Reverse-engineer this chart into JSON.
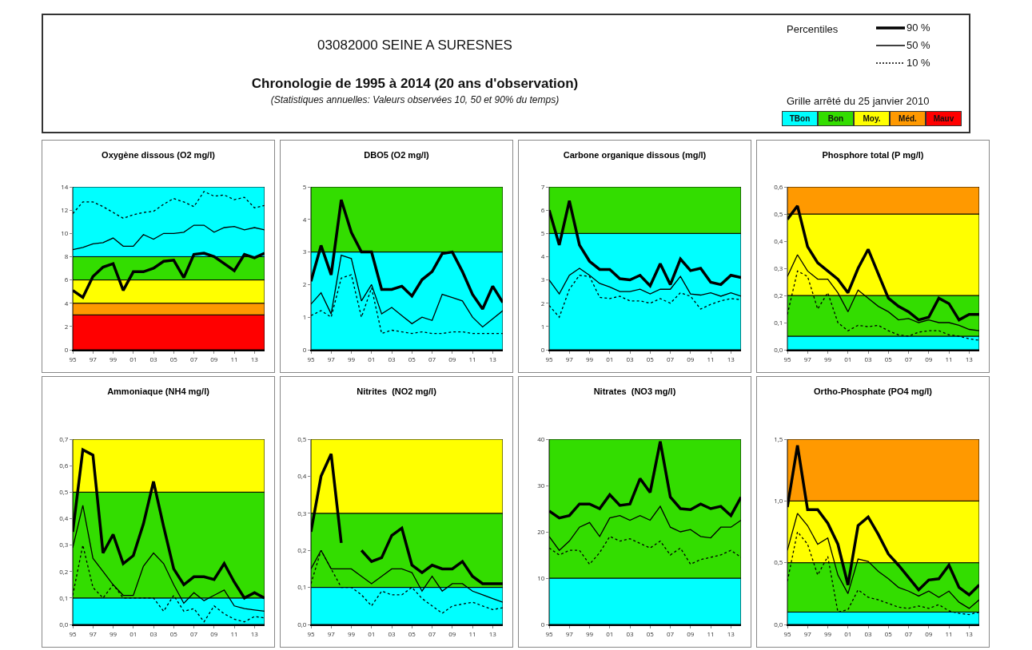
{
  "chart_data": [
    {
      "type": "other",
      "title": "03082000 SEINE A SURESNES",
      "subtitle": "Chronologie de 1995 à 2014 (20 ans d'observation)",
      "annotations": [
        "(Statistiques annuelles: Valeurs observées 10, 50 et 90% du temps)",
        "Percentiles",
        "Grille arrêté du 25 janvier 2010",
        "90 %",
        "50 %",
        "10 %",
        "TBon",
        "Bon",
        "Moy.",
        "Méd.",
        "Mauv"
      ],
      "colors": [
        "#00ffff",
        "#33dd00",
        "#ffff00",
        "#ff9900",
        "#ff0000"
      ]
    },
    {
      "type": "line",
      "title": "Oxygène dissous (O2 mg/l)",
      "x": [
        1995,
        1996,
        1997,
        1998,
        1999,
        2000,
        2001,
        2002,
        2003,
        2004,
        2005,
        2006,
        2007,
        2008,
        2009,
        2010,
        2011,
        2012,
        2013,
        2014
      ],
      "xlim": [
        1995,
        2014
      ],
      "xticks": [
        {
          "value": 1995,
          "label": "95"
        },
        {
          "value": 1997,
          "label": "97"
        },
        {
          "value": 1999,
          "label": "99"
        },
        {
          "value": 2001,
          "label": "01"
        },
        {
          "value": 2003,
          "label": "03"
        },
        {
          "value": 2005,
          "label": "05"
        },
        {
          "value": 2007,
          "label": "07"
        },
        {
          "value": 2009,
          "label": "09"
        },
        {
          "value": 2011,
          "label": "11"
        },
        {
          "value": 2013,
          "label": "13"
        }
      ],
      "ylim": [
        0,
        14
      ],
      "yticks": [
        0,
        2,
        4,
        6,
        8,
        10,
        12,
        14
      ],
      "bands": [
        {
          "axis": "y",
          "from": 0,
          "to": 3,
          "color": "#ff0000"
        },
        {
          "axis": "y",
          "from": 3,
          "to": 4,
          "color": "#ff9900"
        },
        {
          "axis": "y",
          "from": 4,
          "to": 6,
          "color": "#ffff00"
        },
        {
          "axis": "y",
          "from": 6,
          "to": 8,
          "color": "#33dd00"
        },
        {
          "axis": "y",
          "from": 8,
          "to": 14,
          "color": "#00ffff"
        }
      ],
      "series": [
        {
          "color": "#000000",
          "line_style": "solid",
          "values": [
            5.1,
            4.5,
            6.3,
            7.1,
            7.4,
            5.1,
            6.7,
            6.7,
            7.0,
            7.6,
            7.7,
            6.2,
            8.2,
            8.3,
            8.0,
            7.4,
            6.8,
            8.2,
            7.9,
            8.3
          ]
        },
        {
          "color": "#000000",
          "line_style": "solid",
          "values": [
            8.6,
            8.8,
            9.1,
            9.2,
            9.6,
            8.9,
            8.9,
            9.9,
            9.5,
            10.0,
            10.0,
            10.1,
            10.7,
            10.7,
            10.1,
            10.5,
            10.6,
            10.3,
            10.5,
            10.3
          ]
        },
        {
          "color": "#000000",
          "line_style": "dotted",
          "values": [
            11.7,
            12.7,
            12.7,
            12.3,
            11.8,
            11.3,
            11.6,
            11.8,
            11.9,
            12.5,
            13.0,
            12.7,
            12.3,
            13.6,
            13.2,
            13.3,
            12.9,
            13.1,
            12.2,
            12.4
          ]
        }
      ],
      "marker": "none",
      "grid": false
    },
    {
      "type": "line",
      "title": "DBO5 (O2 mg/l)",
      "x": [
        1995,
        1996,
        1997,
        1998,
        1999,
        2000,
        2001,
        2002,
        2003,
        2004,
        2005,
        2006,
        2007,
        2008,
        2009,
        2010,
        2011,
        2012,
        2013,
        2014
      ],
      "xlim": [
        1995,
        2014
      ],
      "xticks": [
        {
          "value": 1995,
          "label": "95"
        },
        {
          "value": 1997,
          "label": "97"
        },
        {
          "value": 1999,
          "label": "99"
        },
        {
          "value": 2001,
          "label": "01"
        },
        {
          "value": 2003,
          "label": "03"
        },
        {
          "value": 2005,
          "label": "05"
        },
        {
          "value": 2007,
          "label": "07"
        },
        {
          "value": 2009,
          "label": "09"
        },
        {
          "value": 2011,
          "label": "11"
        },
        {
          "value": 2013,
          "label": "13"
        }
      ],
      "ylim": [
        0,
        5
      ],
      "yticks": [
        0,
        1,
        2,
        3,
        4,
        5
      ],
      "bands": [
        {
          "axis": "y",
          "from": 0,
          "to": 3,
          "color": "#00ffff"
        },
        {
          "axis": "y",
          "from": 3,
          "to": 5,
          "color": "#33dd00"
        }
      ],
      "series": [
        {
          "color": "#000000",
          "line_style": "solid",
          "values": [
            2.1,
            3.2,
            2.3,
            4.6,
            3.6,
            3.0,
            3.0,
            1.85,
            1.85,
            1.95,
            1.65,
            2.15,
            2.4,
            2.95,
            3.0,
            2.4,
            1.7,
            1.25,
            1.95,
            1.45
          ]
        },
        {
          "color": "#000000",
          "line_style": "solid",
          "values": [
            1.4,
            1.75,
            1.1,
            2.9,
            2.8,
            1.5,
            2.0,
            1.1,
            1.3,
            1.05,
            0.8,
            1.0,
            0.9,
            1.7,
            1.6,
            1.5,
            1.0,
            0.7,
            0.95,
            1.2
          ]
        },
        {
          "color": "#000000",
          "line_style": "dotted",
          "values": [
            1.05,
            1.2,
            1.0,
            2.2,
            2.3,
            1.0,
            1.9,
            0.5,
            0.6,
            0.55,
            0.5,
            0.55,
            0.5,
            0.5,
            0.55,
            0.55,
            0.5,
            0.5,
            0.5,
            0.5
          ]
        }
      ],
      "marker": "none",
      "grid": false
    },
    {
      "type": "line",
      "title": "Carbone organique dissous (mg/l)",
      "x": [
        1995,
        1996,
        1997,
        1998,
        1999,
        2000,
        2001,
        2002,
        2003,
        2004,
        2005,
        2006,
        2007,
        2008,
        2009,
        2010,
        2011,
        2012,
        2013,
        2014
      ],
      "xlim": [
        1995,
        2014
      ],
      "xticks": [
        {
          "value": 1995,
          "label": "95"
        },
        {
          "value": 1997,
          "label": "97"
        },
        {
          "value": 1999,
          "label": "99"
        },
        {
          "value": 2001,
          "label": "01"
        },
        {
          "value": 2003,
          "label": "03"
        },
        {
          "value": 2005,
          "label": "05"
        },
        {
          "value": 2007,
          "label": "07"
        },
        {
          "value": 2009,
          "label": "09"
        },
        {
          "value": 2011,
          "label": "11"
        },
        {
          "value": 2013,
          "label": "13"
        }
      ],
      "ylim": [
        0,
        7
      ],
      "yticks": [
        0,
        1,
        2,
        3,
        4,
        5,
        6,
        7
      ],
      "bands": [
        {
          "axis": "y",
          "from": 0,
          "to": 5,
          "color": "#00ffff"
        },
        {
          "axis": "y",
          "from": 5,
          "to": 7,
          "color": "#33dd00"
        }
      ],
      "series": [
        {
          "color": "#000000",
          "line_style": "solid",
          "values": [
            6.0,
            4.5,
            6.4,
            4.5,
            3.8,
            3.45,
            3.45,
            3.05,
            3.0,
            3.2,
            2.75,
            3.7,
            2.8,
            3.9,
            3.4,
            3.5,
            2.9,
            2.8,
            3.2,
            3.1
          ]
        },
        {
          "color": "#000000",
          "line_style": "solid",
          "values": [
            3.0,
            2.4,
            3.2,
            3.5,
            3.2,
            2.85,
            2.7,
            2.5,
            2.5,
            2.6,
            2.4,
            2.6,
            2.6,
            3.15,
            2.4,
            2.35,
            2.45,
            2.3,
            2.45,
            2.3
          ]
        },
        {
          "color": "#000000",
          "line_style": "dotted",
          "values": [
            1.9,
            1.4,
            2.6,
            3.2,
            3.15,
            2.25,
            2.2,
            2.3,
            2.1,
            2.1,
            2.0,
            2.2,
            2.0,
            2.45,
            2.3,
            1.75,
            1.95,
            2.1,
            2.2,
            2.15
          ]
        }
      ],
      "marker": "none",
      "grid": false
    },
    {
      "type": "line",
      "title": "Phosphore total (P mg/l)",
      "x": [
        1995,
        1996,
        1997,
        1998,
        1999,
        2000,
        2001,
        2002,
        2003,
        2004,
        2005,
        2006,
        2007,
        2008,
        2009,
        2010,
        2011,
        2012,
        2013,
        2014
      ],
      "xlim": [
        1995,
        2014
      ],
      "xticks": [
        {
          "value": 1995,
          "label": "95"
        },
        {
          "value": 1997,
          "label": "97"
        },
        {
          "value": 1999,
          "label": "99"
        },
        {
          "value": 2001,
          "label": "01"
        },
        {
          "value": 2003,
          "label": "03"
        },
        {
          "value": 2005,
          "label": "05"
        },
        {
          "value": 2007,
          "label": "07"
        },
        {
          "value": 2009,
          "label": "09"
        },
        {
          "value": 2011,
          "label": "11"
        },
        {
          "value": 2013,
          "label": "13"
        }
      ],
      "ylim": [
        0,
        0.6
      ],
      "yticks": [
        {
          "value": 0,
          "label": "0,0"
        },
        {
          "value": 0.1,
          "label": "0,1"
        },
        {
          "value": 0.2,
          "label": "0,2"
        },
        {
          "value": 0.3,
          "label": "0,3"
        },
        {
          "value": 0.4,
          "label": "0,4"
        },
        {
          "value": 0.5,
          "label": "0,5"
        },
        {
          "value": 0.6,
          "label": "0,6"
        }
      ],
      "bands": [
        {
          "axis": "y",
          "from": 0,
          "to": 0.05,
          "color": "#00ffff"
        },
        {
          "axis": "y",
          "from": 0.05,
          "to": 0.2,
          "color": "#33dd00"
        },
        {
          "axis": "y",
          "from": 0.2,
          "to": 0.5,
          "color": "#ffff00"
        },
        {
          "axis": "y",
          "from": 0.5,
          "to": 0.6,
          "color": "#ff9900"
        }
      ],
      "series": [
        {
          "color": "#000000",
          "line_style": "solid",
          "values": [
            0.48,
            0.53,
            0.38,
            0.32,
            0.29,
            0.26,
            0.21,
            0.3,
            0.37,
            0.28,
            0.19,
            0.16,
            0.14,
            0.11,
            0.12,
            0.19,
            0.17,
            0.11,
            0.13,
            0.13
          ]
        },
        {
          "color": "#000000",
          "line_style": "solid",
          "values": [
            0.27,
            0.35,
            0.29,
            0.26,
            0.26,
            0.21,
            0.14,
            0.22,
            0.19,
            0.16,
            0.14,
            0.11,
            0.115,
            0.1,
            0.11,
            0.1,
            0.1,
            0.09,
            0.075,
            0.07
          ]
        },
        {
          "color": "#000000",
          "line_style": "dotted",
          "values": [
            0.13,
            0.29,
            0.27,
            0.15,
            0.21,
            0.1,
            0.07,
            0.09,
            0.085,
            0.09,
            0.07,
            0.055,
            0.05,
            0.065,
            0.07,
            0.07,
            0.055,
            0.05,
            0.04,
            0.035
          ]
        }
      ],
      "marker": "none",
      "grid": false
    },
    {
      "type": "line",
      "title": "Ammoniaque (NH4 mg/l)",
      "x": [
        1995,
        1996,
        1997,
        1998,
        1999,
        2000,
        2001,
        2002,
        2003,
        2004,
        2005,
        2006,
        2007,
        2008,
        2009,
        2010,
        2011,
        2012,
        2013,
        2014
      ],
      "xlim": [
        1995,
        2014
      ],
      "xticks": [
        {
          "value": 1995,
          "label": "95"
        },
        {
          "value": 1997,
          "label": "97"
        },
        {
          "value": 1999,
          "label": "99"
        },
        {
          "value": 2001,
          "label": "01"
        },
        {
          "value": 2003,
          "label": "03"
        },
        {
          "value": 2005,
          "label": "05"
        },
        {
          "value": 2007,
          "label": "07"
        },
        {
          "value": 2009,
          "label": "09"
        },
        {
          "value": 2011,
          "label": "11"
        },
        {
          "value": 2013,
          "label": "13"
        }
      ],
      "ylim": [
        0,
        0.7
      ],
      "yticks": [
        {
          "value": 0,
          "label": "0,0"
        },
        {
          "value": 0.1,
          "label": "0,1"
        },
        {
          "value": 0.2,
          "label": "0,2"
        },
        {
          "value": 0.3,
          "label": "0,3"
        },
        {
          "value": 0.4,
          "label": "0,4"
        },
        {
          "value": 0.5,
          "label": "0,5"
        },
        {
          "value": 0.6,
          "label": "0,6"
        },
        {
          "value": 0.7,
          "label": "0,7"
        }
      ],
      "bands": [
        {
          "axis": "y",
          "from": 0,
          "to": 0.1,
          "color": "#00ffff"
        },
        {
          "axis": "y",
          "from": 0.1,
          "to": 0.5,
          "color": "#33dd00"
        },
        {
          "axis": "y",
          "from": 0.5,
          "to": 0.7,
          "color": "#ffff00"
        }
      ],
      "series": [
        {
          "color": "#000000",
          "line_style": "solid",
          "values": [
            0.35,
            0.66,
            0.64,
            0.27,
            0.34,
            0.23,
            0.26,
            0.38,
            0.54,
            0.37,
            0.21,
            0.15,
            0.18,
            0.18,
            0.17,
            0.23,
            0.16,
            0.1,
            0.12,
            0.1
          ]
        },
        {
          "color": "#000000",
          "line_style": "solid",
          "values": [
            0.29,
            0.45,
            0.25,
            0.2,
            0.15,
            0.11,
            0.11,
            0.22,
            0.27,
            0.23,
            0.15,
            0.08,
            0.12,
            0.09,
            0.11,
            0.13,
            0.07,
            0.06,
            0.055,
            0.05
          ]
        },
        {
          "color": "#000000",
          "line_style": "dotted",
          "values": [
            0.11,
            0.3,
            0.14,
            0.1,
            0.15,
            0.1,
            0.1,
            0.1,
            0.1,
            0.05,
            0.11,
            0.05,
            0.06,
            0.01,
            0.07,
            0.04,
            0.02,
            0.01,
            0.03,
            0.025
          ]
        }
      ],
      "marker": "none",
      "grid": false
    },
    {
      "type": "line",
      "title": "Nitrites  (NO2 mg/l)",
      "x": [
        1995,
        1996,
        1997,
        1998,
        1999,
        2000,
        2001,
        2002,
        2003,
        2004,
        2005,
        2006,
        2007,
        2008,
        2009,
        2010,
        2011,
        2012,
        2013,
        2014
      ],
      "xlim": [
        1995,
        2014
      ],
      "xticks": [
        {
          "value": 1995,
          "label": "95"
        },
        {
          "value": 1997,
          "label": "97"
        },
        {
          "value": 1999,
          "label": "99"
        },
        {
          "value": 2001,
          "label": "01"
        },
        {
          "value": 2003,
          "label": "03"
        },
        {
          "value": 2005,
          "label": "05"
        },
        {
          "value": 2007,
          "label": "07"
        },
        {
          "value": 2009,
          "label": "09"
        },
        {
          "value": 2011,
          "label": "11"
        },
        {
          "value": 2013,
          "label": "13"
        }
      ],
      "ylim": [
        0,
        0.5
      ],
      "yticks": [
        {
          "value": 0,
          "label": "0,0"
        },
        {
          "value": 0.1,
          "label": "0,1"
        },
        {
          "value": 0.2,
          "label": "0,2"
        },
        {
          "value": 0.3,
          "label": "0,3"
        },
        {
          "value": 0.4,
          "label": "0,4"
        },
        {
          "value": 0.5,
          "label": "0,5"
        }
      ],
      "bands": [
        {
          "axis": "y",
          "from": 0,
          "to": 0.1,
          "color": "#00ffff"
        },
        {
          "axis": "y",
          "from": 0.1,
          "to": 0.3,
          "color": "#33dd00"
        },
        {
          "axis": "y",
          "from": 0.3,
          "to": 0.5,
          "color": "#ffff00"
        }
      ],
      "series": [
        {
          "color": "#000000",
          "line_style": "solid",
          "values": [
            0.25,
            0.4,
            0.46,
            0.22,
            null,
            0.2,
            0.17,
            0.18,
            0.24,
            0.26,
            0.16,
            0.14,
            0.16,
            0.15,
            0.15,
            0.17,
            0.13,
            0.11,
            0.11,
            0.11
          ]
        },
        {
          "color": "#000000",
          "line_style": "solid",
          "values": [
            0.15,
            0.2,
            0.15,
            0.15,
            0.15,
            0.13,
            0.11,
            0.13,
            0.15,
            0.15,
            0.14,
            0.09,
            0.13,
            0.09,
            0.11,
            0.11,
            0.09,
            0.08,
            0.07,
            0.06
          ]
        },
        {
          "color": "#000000",
          "line_style": "dotted",
          "values": [
            0.11,
            0.2,
            0.15,
            0.1,
            0.1,
            0.08,
            0.05,
            0.09,
            0.08,
            0.08,
            0.1,
            0.07,
            0.05,
            0.03,
            0.05,
            0.055,
            0.06,
            0.05,
            0.04,
            0.045
          ]
        }
      ],
      "marker": "none",
      "grid": false
    },
    {
      "type": "line",
      "title": "Nitrates  (NO3 mg/l)",
      "x": [
        1995,
        1996,
        1997,
        1998,
        1999,
        2000,
        2001,
        2002,
        2003,
        2004,
        2005,
        2006,
        2007,
        2008,
        2009,
        2010,
        2011,
        2012,
        2013,
        2014
      ],
      "xlim": [
        1995,
        2014
      ],
      "xticks": [
        {
          "value": 1995,
          "label": "95"
        },
        {
          "value": 1997,
          "label": "97"
        },
        {
          "value": 1999,
          "label": "99"
        },
        {
          "value": 2001,
          "label": "01"
        },
        {
          "value": 2003,
          "label": "03"
        },
        {
          "value": 2005,
          "label": "05"
        },
        {
          "value": 2007,
          "label": "07"
        },
        {
          "value": 2009,
          "label": "09"
        },
        {
          "value": 2011,
          "label": "11"
        },
        {
          "value": 2013,
          "label": "13"
        }
      ],
      "ylim": [
        0,
        40
      ],
      "yticks": [
        0,
        10,
        20,
        30,
        40
      ],
      "bands": [
        {
          "axis": "y",
          "from": 0,
          "to": 10,
          "color": "#00ffff"
        },
        {
          "axis": "y",
          "from": 10,
          "to": 40,
          "color": "#33dd00"
        }
      ],
      "series": [
        {
          "color": "#000000",
          "line_style": "solid",
          "values": [
            24.5,
            23,
            23.5,
            26,
            26,
            25,
            28,
            25.7,
            26,
            31.5,
            28.5,
            39.5,
            27.5,
            25,
            24.8,
            26,
            25,
            25.5,
            23.5,
            27.5
          ]
        },
        {
          "color": "#000000",
          "line_style": "solid",
          "values": [
            19,
            16,
            18,
            21,
            22,
            19,
            23,
            23.5,
            22.5,
            23.5,
            22.5,
            25.5,
            21,
            20,
            20.5,
            19,
            18.7,
            21,
            21,
            22.5
          ]
        },
        {
          "color": "#000000",
          "line_style": "dotted",
          "values": [
            16.5,
            15,
            16,
            16,
            13,
            15.5,
            19,
            18,
            18.5,
            17.5,
            16.5,
            18,
            15,
            16.5,
            13,
            14,
            14.5,
            15,
            16,
            14.5
          ]
        }
      ],
      "marker": "none",
      "grid": false
    },
    {
      "type": "line",
      "title": "Ortho-Phosphate (PO4 mg/l)",
      "x": [
        1995,
        1996,
        1997,
        1998,
        1999,
        2000,
        2001,
        2002,
        2003,
        2004,
        2005,
        2006,
        2007,
        2008,
        2009,
        2010,
        2011,
        2012,
        2013,
        2014
      ],
      "xlim": [
        1995,
        2014
      ],
      "xticks": [
        {
          "value": 1995,
          "label": "95"
        },
        {
          "value": 1997,
          "label": "97"
        },
        {
          "value": 1999,
          "label": "99"
        },
        {
          "value": 2001,
          "label": "01"
        },
        {
          "value": 2003,
          "label": "03"
        },
        {
          "value": 2005,
          "label": "05"
        },
        {
          "value": 2007,
          "label": "07"
        },
        {
          "value": 2009,
          "label": "09"
        },
        {
          "value": 2011,
          "label": "11"
        },
        {
          "value": 2013,
          "label": "13"
        }
      ],
      "ylim": [
        0,
        1.5
      ],
      "yticks": [
        {
          "value": 0,
          "label": "0,0"
        },
        {
          "value": 0.5,
          "label": "0,5"
        },
        {
          "value": 1,
          "label": "1,0"
        },
        {
          "value": 1.5,
          "label": "1,5"
        }
      ],
      "bands": [
        {
          "axis": "y",
          "from": 0,
          "to": 0.1,
          "color": "#00ffff"
        },
        {
          "axis": "y",
          "from": 0.1,
          "to": 0.5,
          "color": "#33dd00"
        },
        {
          "axis": "y",
          "from": 0.5,
          "to": 1,
          "color": "#ffff00"
        },
        {
          "axis": "y",
          "from": 1,
          "to": 1.5,
          "color": "#ff9900"
        }
      ],
      "series": [
        {
          "color": "#000000",
          "line_style": "solid",
          "values": [
            0.95,
            1.45,
            0.93,
            0.93,
            0.82,
            0.65,
            0.32,
            0.8,
            0.87,
            0.73,
            0.57,
            0.48,
            0.38,
            0.28,
            0.36,
            0.37,
            0.48,
            0.3,
            0.24,
            0.32
          ]
        },
        {
          "color": "#000000",
          "line_style": "solid",
          "values": [
            0.6,
            0.9,
            0.8,
            0.65,
            0.7,
            0.4,
            0.25,
            0.53,
            0.51,
            0.43,
            0.37,
            0.3,
            0.27,
            0.23,
            0.27,
            0.22,
            0.27,
            0.18,
            0.13,
            0.2
          ]
        },
        {
          "color": "#000000",
          "line_style": "dotted",
          "values": [
            0.35,
            0.75,
            0.65,
            0.4,
            0.55,
            0.1,
            0.12,
            0.28,
            0.22,
            0.2,
            0.17,
            0.14,
            0.13,
            0.15,
            0.13,
            0.16,
            0.11,
            0.09,
            0.08,
            0.1
          ]
        }
      ],
      "marker": "none",
      "grid": false
    }
  ]
}
